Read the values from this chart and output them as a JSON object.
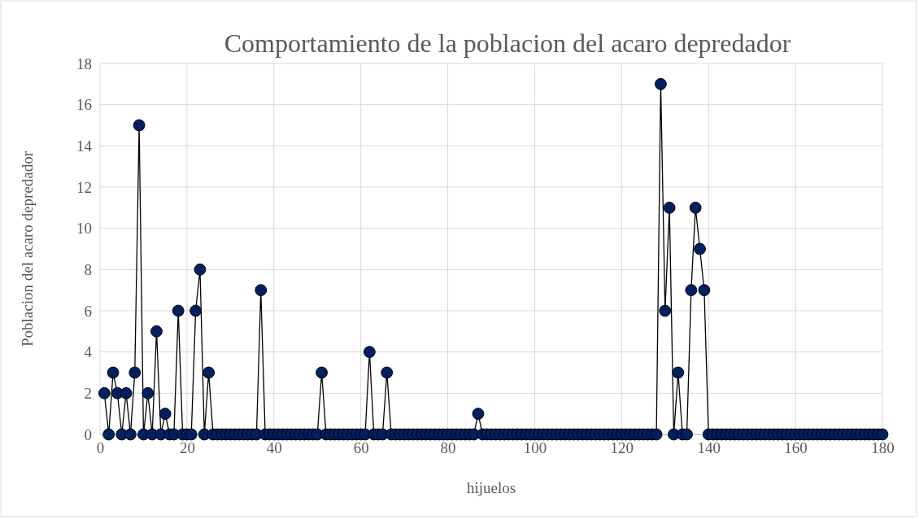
{
  "chart_data": {
    "type": "line",
    "title": "Comportamiento de la poblacion del acaro depredador",
    "xlabel": "hijuelos",
    "ylabel": "Poblacion del acaro depredador",
    "x": [
      1,
      2,
      3,
      4,
      5,
      6,
      7,
      8,
      9,
      10,
      11,
      12,
      13,
      14,
      15,
      16,
      17,
      18,
      19,
      20,
      21,
      22,
      23,
      24,
      25,
      26,
      27,
      28,
      29,
      30,
      31,
      32,
      33,
      34,
      35,
      36,
      37,
      38,
      39,
      40,
      41,
      42,
      43,
      44,
      45,
      46,
      47,
      48,
      49,
      50,
      51,
      52,
      53,
      54,
      55,
      56,
      57,
      58,
      59,
      60,
      61,
      62,
      63,
      64,
      65,
      66,
      67,
      68,
      69,
      70,
      71,
      72,
      73,
      74,
      75,
      76,
      77,
      78,
      79,
      80,
      81,
      82,
      83,
      84,
      85,
      86,
      87,
      88,
      89,
      90,
      91,
      92,
      93,
      94,
      95,
      96,
      97,
      98,
      99,
      100,
      101,
      102,
      103,
      104,
      105,
      106,
      107,
      108,
      109,
      110,
      111,
      112,
      113,
      114,
      115,
      116,
      117,
      118,
      119,
      120,
      121,
      122,
      123,
      124,
      125,
      126,
      127,
      128,
      129,
      130,
      131,
      132,
      133,
      134,
      135,
      136,
      137,
      138,
      139,
      140,
      141,
      142,
      143,
      144,
      145,
      146,
      147,
      148,
      149,
      150,
      151,
      152,
      153,
      154,
      155,
      156,
      157,
      158,
      159,
      160,
      161,
      162,
      163,
      164,
      165,
      166,
      167,
      168,
      169,
      170,
      171,
      172,
      173,
      174,
      175,
      176,
      177,
      178,
      179,
      180
    ],
    "series": [
      {
        "color": "#002060",
        "values": [
          2,
          0,
          3,
          2,
          0,
          2,
          0,
          3,
          15,
          0,
          2,
          0,
          5,
          0,
          1,
          0,
          0,
          6,
          0,
          0,
          0,
          6,
          8,
          0,
          3,
          0,
          0,
          0,
          0,
          0,
          0,
          0,
          0,
          0,
          0,
          0,
          7,
          0,
          0,
          0,
          0,
          0,
          0,
          0,
          0,
          0,
          0,
          0,
          0,
          0,
          3,
          0,
          0,
          0,
          0,
          0,
          0,
          0,
          0,
          0,
          0,
          4,
          0,
          0,
          0,
          3,
          0,
          0,
          0,
          0,
          0,
          0,
          0,
          0,
          0,
          0,
          0,
          0,
          0,
          0,
          0,
          0,
          0,
          0,
          0,
          0,
          1,
          0,
          0,
          0,
          0,
          0,
          0,
          0,
          0,
          0,
          0,
          0,
          0,
          0,
          0,
          0,
          0,
          0,
          0,
          0,
          0,
          0,
          0,
          0,
          0,
          0,
          0,
          0,
          0,
          0,
          0,
          0,
          0,
          0,
          0,
          0,
          0,
          0,
          0,
          0,
          0,
          0,
          17,
          6,
          11,
          0,
          3,
          0,
          0,
          7,
          11,
          9,
          7,
          0,
          0,
          0,
          0,
          0,
          0,
          0,
          0,
          0,
          0,
          0,
          0,
          0,
          0,
          0,
          0,
          0,
          0,
          0,
          0,
          0,
          0,
          0,
          0,
          0,
          0,
          0,
          0,
          0,
          0,
          0,
          0,
          0,
          0,
          0,
          0,
          0,
          0,
          0,
          0,
          0
        ]
      }
    ],
    "xlim": [
      0,
      180
    ],
    "xticks": [
      0,
      20,
      40,
      60,
      80,
      100,
      120,
      140,
      160,
      180
    ],
    "ylim": [
      0,
      18
    ],
    "yticks": [
      0,
      2,
      4,
      6,
      8,
      10,
      12,
      14,
      16,
      18
    ],
    "grid": true,
    "marker": "circle",
    "line_style": "solid"
  }
}
